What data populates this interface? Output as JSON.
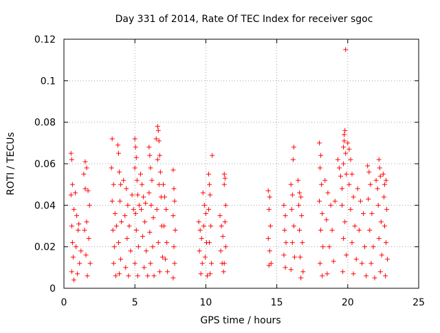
{
  "chart_data": {
    "type": "scatter",
    "title": "Day 331 of 2014, Rate Of TEC Index for receiver sgoc",
    "xlabel": "GPS time / hours",
    "ylabel": "ROTI / TECUs",
    "xlim": [
      0,
      25
    ],
    "ylim": [
      0,
      0.12
    ],
    "xticks": [
      0,
      5,
      10,
      15,
      20,
      25
    ],
    "xtick_labels": [
      "0",
      "5",
      "10",
      "15",
      "20",
      "25"
    ],
    "yticks": [
      0,
      0.02,
      0.04,
      0.06,
      0.08,
      0.1,
      0.12
    ],
    "ytick_labels": [
      "0",
      "0.02",
      "0.04",
      "0.06",
      "0.08",
      "0.1",
      "0.12"
    ],
    "grid": true,
    "marker": "+",
    "color": "#ff0000",
    "series": [
      {
        "name": "ROTI",
        "points": [
          [
            0.5,
            0.065
          ],
          [
            0.55,
            0.062
          ],
          [
            0.6,
            0.05
          ],
          [
            0.5,
            0.045
          ],
          [
            0.7,
            0.038
          ],
          [
            0.55,
            0.03
          ],
          [
            0.6,
            0.022
          ],
          [
            0.65,
            0.015
          ],
          [
            0.55,
            0.008
          ],
          [
            0.7,
            0.004
          ],
          [
            0.8,
            0.046
          ],
          [
            0.9,
            0.035
          ],
          [
            1.0,
            0.028
          ],
          [
            0.85,
            0.02
          ],
          [
            1.1,
            0.012
          ],
          [
            0.95,
            0.007
          ],
          [
            1.2,
            0.018
          ],
          [
            1.05,
            0.031
          ],
          [
            1.4,
            0.055
          ],
          [
            1.5,
            0.061
          ],
          [
            1.6,
            0.058
          ],
          [
            1.5,
            0.048
          ],
          [
            1.7,
            0.047
          ],
          [
            1.8,
            0.04
          ],
          [
            1.6,
            0.032
          ],
          [
            1.75,
            0.024
          ],
          [
            1.55,
            0.016
          ],
          [
            1.65,
            0.006
          ],
          [
            1.85,
            0.012
          ],
          [
            1.45,
            0.028
          ],
          [
            3.4,
            0.072
          ],
          [
            3.35,
            0.058
          ],
          [
            3.5,
            0.05
          ],
          [
            3.4,
            0.042
          ],
          [
            3.6,
            0.036
          ],
          [
            3.45,
            0.028
          ],
          [
            3.55,
            0.02
          ],
          [
            3.5,
            0.012
          ],
          [
            3.65,
            0.006
          ],
          [
            3.7,
            0.03
          ],
          [
            3.8,
            0.069
          ],
          [
            3.85,
            0.065
          ],
          [
            3.9,
            0.056
          ],
          [
            4.0,
            0.05
          ],
          [
            3.95,
            0.042
          ],
          [
            4.05,
            0.032
          ],
          [
            3.85,
            0.022
          ],
          [
            4.0,
            0.014
          ],
          [
            3.9,
            0.007
          ],
          [
            4.2,
            0.052
          ],
          [
            4.4,
            0.048
          ],
          [
            4.5,
            0.04
          ],
          [
            4.3,
            0.035
          ],
          [
            4.6,
            0.03
          ],
          [
            4.45,
            0.024
          ],
          [
            4.7,
            0.018
          ],
          [
            4.35,
            0.01
          ],
          [
            4.55,
            0.006
          ],
          [
            4.8,
            0.045
          ],
          [
            4.9,
            0.038
          ],
          [
            5.0,
            0.072
          ],
          [
            5.05,
            0.068
          ],
          [
            5.1,
            0.063
          ],
          [
            5.0,
            0.058
          ],
          [
            5.15,
            0.052
          ],
          [
            5.2,
            0.045
          ],
          [
            5.05,
            0.036
          ],
          [
            5.1,
            0.028
          ],
          [
            5.25,
            0.02
          ],
          [
            5.0,
            0.012
          ],
          [
            5.2,
            0.006
          ],
          [
            5.3,
            0.04
          ],
          [
            5.4,
            0.055
          ],
          [
            5.5,
            0.05
          ],
          [
            5.6,
            0.044
          ],
          [
            5.45,
            0.038
          ],
          [
            5.7,
            0.032
          ],
          [
            5.55,
            0.025
          ],
          [
            5.8,
            0.018
          ],
          [
            5.65,
            0.01
          ],
          [
            5.9,
            0.006
          ],
          [
            5.75,
            0.041
          ],
          [
            6.0,
            0.068
          ],
          [
            6.05,
            0.064
          ],
          [
            6.1,
            0.058
          ],
          [
            6.2,
            0.052
          ],
          [
            6.0,
            0.046
          ],
          [
            6.15,
            0.04
          ],
          [
            6.3,
            0.034
          ],
          [
            6.05,
            0.027
          ],
          [
            6.25,
            0.02
          ],
          [
            6.1,
            0.012
          ],
          [
            6.35,
            0.006
          ],
          [
            6.5,
            0.072
          ],
          [
            6.6,
            0.078
          ],
          [
            6.65,
            0.076
          ],
          [
            6.7,
            0.071
          ],
          [
            6.75,
            0.064
          ],
          [
            6.6,
            0.062
          ],
          [
            6.8,
            0.056
          ],
          [
            6.7,
            0.05
          ],
          [
            6.85,
            0.044
          ],
          [
            6.55,
            0.038
          ],
          [
            6.9,
            0.03
          ],
          [
            6.65,
            0.022
          ],
          [
            6.95,
            0.015
          ],
          [
            6.75,
            0.008
          ],
          [
            7.0,
            0.05
          ],
          [
            7.1,
            0.044
          ],
          [
            7.2,
            0.038
          ],
          [
            7.05,
            0.03
          ],
          [
            7.25,
            0.022
          ],
          [
            7.15,
            0.014
          ],
          [
            7.3,
            0.008
          ],
          [
            7.7,
            0.057
          ],
          [
            7.75,
            0.048
          ],
          [
            7.8,
            0.042
          ],
          [
            7.7,
            0.035
          ],
          [
            7.85,
            0.028
          ],
          [
            7.75,
            0.02
          ],
          [
            7.8,
            0.012
          ],
          [
            7.7,
            0.005
          ],
          [
            9.5,
            0.032
          ],
          [
            9.6,
            0.028
          ],
          [
            9.7,
            0.024
          ],
          [
            9.55,
            0.018
          ],
          [
            9.75,
            0.012
          ],
          [
            9.65,
            0.007
          ],
          [
            9.8,
            0.046
          ],
          [
            9.9,
            0.04
          ],
          [
            10.0,
            0.036
          ],
          [
            9.85,
            0.03
          ],
          [
            10.05,
            0.022
          ],
          [
            9.95,
            0.015
          ],
          [
            10.1,
            0.006
          ],
          [
            10.2,
            0.055
          ],
          [
            10.25,
            0.05
          ],
          [
            10.3,
            0.045
          ],
          [
            10.2,
            0.038
          ],
          [
            10.35,
            0.03
          ],
          [
            10.25,
            0.022
          ],
          [
            10.4,
            0.012
          ],
          [
            10.3,
            0.007
          ],
          [
            10.45,
            0.064
          ],
          [
            11.0,
            0.035
          ],
          [
            11.1,
            0.03
          ],
          [
            11.2,
            0.025
          ],
          [
            11.05,
            0.018
          ],
          [
            11.15,
            0.012
          ],
          [
            11.25,
            0.008
          ],
          [
            11.3,
            0.055
          ],
          [
            11.35,
            0.053
          ],
          [
            11.3,
            0.05
          ],
          [
            11.4,
            0.04
          ],
          [
            11.35,
            0.032
          ],
          [
            11.4,
            0.02
          ],
          [
            11.3,
            0.012
          ],
          [
            14.4,
            0.047
          ],
          [
            14.5,
            0.044
          ],
          [
            14.45,
            0.038
          ],
          [
            14.55,
            0.03
          ],
          [
            14.4,
            0.024
          ],
          [
            14.5,
            0.018
          ],
          [
            14.6,
            0.012
          ],
          [
            14.45,
            0.011
          ],
          [
            15.5,
            0.04
          ],
          [
            15.6,
            0.035
          ],
          [
            15.55,
            0.028
          ],
          [
            15.65,
            0.022
          ],
          [
            15.5,
            0.016
          ],
          [
            15.6,
            0.01
          ],
          [
            16.0,
            0.05
          ],
          [
            16.1,
            0.045
          ],
          [
            16.2,
            0.068
          ],
          [
            16.15,
            0.062
          ],
          [
            16.05,
            0.038
          ],
          [
            16.2,
            0.03
          ],
          [
            16.1,
            0.022
          ],
          [
            16.25,
            0.015
          ],
          [
            16.0,
            0.009
          ],
          [
            16.5,
            0.052
          ],
          [
            16.6,
            0.046
          ],
          [
            16.7,
            0.044
          ],
          [
            16.55,
            0.04
          ],
          [
            16.75,
            0.035
          ],
          [
            16.6,
            0.028
          ],
          [
            16.8,
            0.022
          ],
          [
            16.65,
            0.015
          ],
          [
            16.85,
            0.008
          ],
          [
            16.7,
            0.005
          ],
          [
            18.0,
            0.07
          ],
          [
            18.1,
            0.064
          ],
          [
            18.05,
            0.058
          ],
          [
            18.15,
            0.05
          ],
          [
            18.0,
            0.042
          ],
          [
            18.2,
            0.036
          ],
          [
            18.1,
            0.028
          ],
          [
            18.25,
            0.02
          ],
          [
            18.05,
            0.012
          ],
          [
            18.2,
            0.006
          ],
          [
            18.4,
            0.052
          ],
          [
            18.6,
            0.046
          ],
          [
            18.8,
            0.04
          ],
          [
            18.5,
            0.033
          ],
          [
            18.9,
            0.028
          ],
          [
            18.7,
            0.02
          ],
          [
            19.0,
            0.013
          ],
          [
            18.55,
            0.007
          ],
          [
            19.1,
            0.042
          ],
          [
            19.3,
            0.062
          ],
          [
            19.4,
            0.058
          ],
          [
            19.5,
            0.054
          ],
          [
            19.6,
            0.048
          ],
          [
            19.7,
            0.068
          ],
          [
            19.75,
            0.074
          ],
          [
            19.8,
            0.076
          ],
          [
            19.75,
            0.071
          ],
          [
            19.85,
            0.065
          ],
          [
            19.7,
            0.06
          ],
          [
            19.9,
            0.055
          ],
          [
            19.6,
            0.04
          ],
          [
            19.8,
            0.032
          ],
          [
            19.7,
            0.024
          ],
          [
            19.9,
            0.016
          ],
          [
            19.65,
            0.008
          ],
          [
            19.85,
            0.115
          ],
          [
            20.0,
            0.07
          ],
          [
            20.1,
            0.067
          ],
          [
            20.2,
            0.062
          ],
          [
            20.3,
            0.055
          ],
          [
            20.1,
            0.05
          ],
          [
            20.4,
            0.044
          ],
          [
            20.2,
            0.038
          ],
          [
            20.5,
            0.03
          ],
          [
            20.3,
            0.022
          ],
          [
            20.6,
            0.014
          ],
          [
            20.4,
            0.007
          ],
          [
            20.7,
            0.048
          ],
          [
            20.9,
            0.042
          ],
          [
            21.1,
            0.036
          ],
          [
            20.8,
            0.028
          ],
          [
            21.2,
            0.02
          ],
          [
            21.0,
            0.012
          ],
          [
            21.3,
            0.006
          ],
          [
            21.4,
            0.059
          ],
          [
            21.5,
            0.056
          ],
          [
            21.6,
            0.05
          ],
          [
            21.45,
            0.043
          ],
          [
            21.7,
            0.036
          ],
          [
            21.55,
            0.028
          ],
          [
            21.8,
            0.02
          ],
          [
            21.65,
            0.012
          ],
          [
            21.9,
            0.005
          ],
          [
            22.0,
            0.052
          ],
          [
            22.1,
            0.048
          ],
          [
            22.2,
            0.062
          ],
          [
            22.25,
            0.058
          ],
          [
            22.3,
            0.054
          ],
          [
            22.15,
            0.04
          ],
          [
            22.35,
            0.032
          ],
          [
            22.2,
            0.024
          ],
          [
            22.4,
            0.016
          ],
          [
            22.3,
            0.008
          ],
          [
            22.5,
            0.055
          ],
          [
            22.6,
            0.05
          ],
          [
            22.7,
            0.052
          ],
          [
            22.55,
            0.044
          ],
          [
            22.75,
            0.038
          ],
          [
            22.6,
            0.03
          ],
          [
            22.7,
            0.022
          ],
          [
            22.8,
            0.014
          ],
          [
            22.65,
            0.006
          ]
        ]
      }
    ]
  }
}
